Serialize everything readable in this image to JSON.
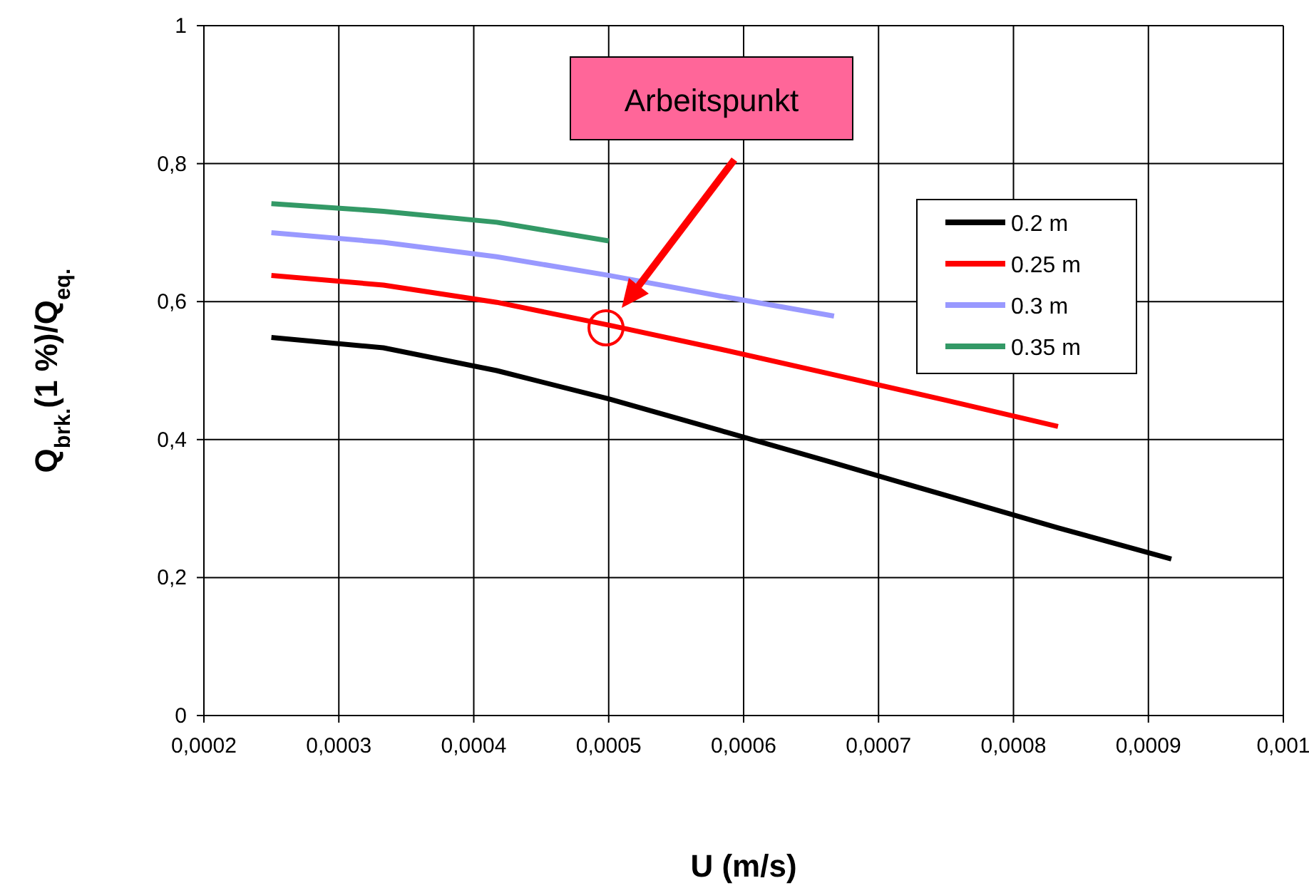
{
  "chart_data": {
    "type": "line",
    "xlabel": "U (m/s)",
    "ylabel": "Q$_{brk.}$(1 %)/Q$_{eq.}$",
    "xlim": [
      0.0002,
      0.001
    ],
    "ylim": [
      0,
      1
    ],
    "xticks": [
      {
        "value": 0.0002,
        "label": "0,0002"
      },
      {
        "value": 0.0003,
        "label": "0,0003"
      },
      {
        "value": 0.0004,
        "label": "0,0004"
      },
      {
        "value": 0.0005,
        "label": "0,0005"
      },
      {
        "value": 0.0006,
        "label": "0,0006"
      },
      {
        "value": 0.0007,
        "label": "0,0007"
      },
      {
        "value": 0.0008,
        "label": "0,0008"
      },
      {
        "value": 0.0009,
        "label": "0,0009"
      },
      {
        "value": 0.001,
        "label": "0,001"
      }
    ],
    "yticks": [
      0,
      {
        "value": 0.2,
        "label": "0,2"
      },
      {
        "value": 0.4,
        "label": "0,4"
      },
      {
        "value": 0.6,
        "label": "0,6"
      },
      {
        "value": 0.8,
        "label": "0,8"
      },
      1
    ],
    "grid": true,
    "legend": "right",
    "marker": "none",
    "line_style": "solid",
    "series": [
      {
        "name": "0.2 m",
        "color": "#000000",
        "x": [
          0.00025,
          0.000333,
          0.000417,
          0.0005,
          0.000583,
          0.000667,
          0.00075,
          0.000833,
          0.000917
        ],
        "values": [
          0.548,
          0.533,
          0.5,
          0.459,
          0.413,
          0.366,
          0.319,
          0.272,
          0.227
        ]
      },
      {
        "name": "0.25 m",
        "color": "#ff0000",
        "x": [
          0.00025,
          0.000333,
          0.000417,
          0.0005,
          0.000583,
          0.000667,
          0.00075,
          0.000833
        ],
        "values": [
          0.638,
          0.624,
          0.599,
          0.566,
          0.531,
          0.494,
          0.457,
          0.419
        ]
      },
      {
        "name": "0.3 m",
        "color": "#9999ff",
        "x": [
          0.00025,
          0.000333,
          0.000417,
          0.0005,
          0.000583,
          0.000667
        ],
        "values": [
          0.7,
          0.686,
          0.665,
          0.638,
          0.608,
          0.579
        ]
      },
      {
        "name": "0.35 m",
        "color": "#339966",
        "x": [
          0.00025,
          0.000333,
          0.000417,
          0.0005
        ],
        "values": [
          0.742,
          0.731,
          0.715,
          0.688
        ]
      }
    ],
    "annotations": [
      "Arbeitspunkt"
    ]
  }
}
